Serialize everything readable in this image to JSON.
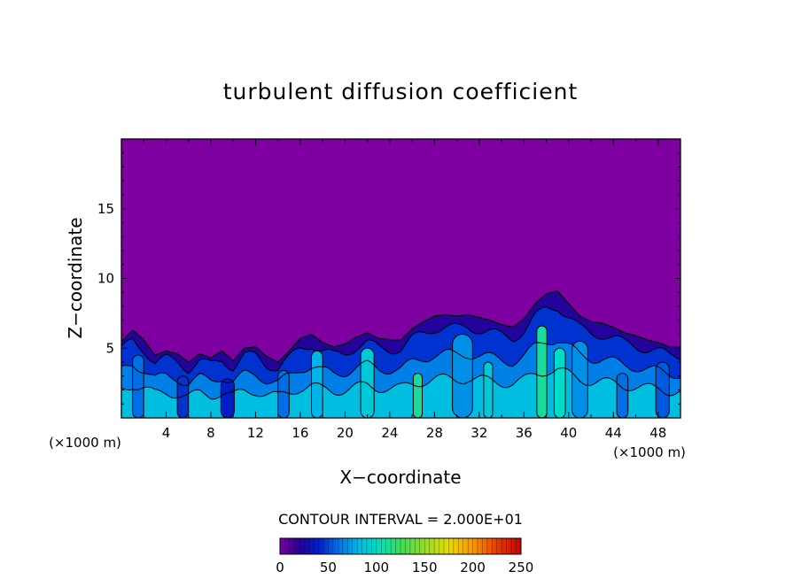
{
  "chart_data": {
    "type": "heatmap",
    "title": "turbulent diffusion coefficient",
    "xlabel": "X−coordinate",
    "ylabel": "Z−coordinate",
    "x_unit_left": "(×1000 m)",
    "x_unit_right": "(×1000 m)",
    "xlim": [
      0,
      50
    ],
    "ylim": [
      0,
      20
    ],
    "x_ticks": [
      4,
      8,
      12,
      16,
      20,
      24,
      28,
      32,
      36,
      40,
      44,
      48
    ],
    "x_tick_labels": [
      "4",
      "8",
      "12",
      "16",
      "20",
      "24",
      "28",
      "32",
      "36",
      "40",
      "44",
      "48"
    ],
    "y_ticks": [
      5,
      10,
      15
    ],
    "y_tick_labels": [
      "5",
      "10",
      "15"
    ],
    "contour_interval_text": "CONTOUR INTERVAL = 2.000E+01",
    "contour_interval": 20,
    "colorbar": {
      "min": 0,
      "max": 250,
      "tick_values": [
        0,
        50,
        100,
        150,
        200,
        250
      ],
      "tick_labels": [
        "0",
        "50",
        "100",
        "150",
        "200",
        "250"
      ]
    },
    "background_value": 0,
    "turbulent_layer_top": [
      [
        0,
        5.5
      ],
      [
        1,
        6.3
      ],
      [
        2,
        5.6
      ],
      [
        3,
        4.5
      ],
      [
        4,
        4.8
      ],
      [
        5,
        4.6
      ],
      [
        6,
        4.0
      ],
      [
        7,
        4.6
      ],
      [
        8,
        4.3
      ],
      [
        9,
        4.8
      ],
      [
        10,
        4.1
      ],
      [
        11,
        5.0
      ],
      [
        12,
        5.1
      ],
      [
        13,
        4.4
      ],
      [
        14,
        4.0
      ],
      [
        15,
        4.8
      ],
      [
        16,
        5.7
      ],
      [
        17,
        6.0
      ],
      [
        18,
        5.4
      ],
      [
        19,
        5.1
      ],
      [
        20,
        5.3
      ],
      [
        21,
        5.8
      ],
      [
        22,
        6.1
      ],
      [
        23,
        5.7
      ],
      [
        24,
        5.6
      ],
      [
        25,
        5.6
      ],
      [
        26,
        6.4
      ],
      [
        27,
        6.9
      ],
      [
        28,
        7.3
      ],
      [
        29,
        7.4
      ],
      [
        30,
        7.3
      ],
      [
        31,
        7.4
      ],
      [
        32,
        7.2
      ],
      [
        33,
        7.0
      ],
      [
        34,
        6.7
      ],
      [
        35,
        6.5
      ],
      [
        36,
        7.1
      ],
      [
        37,
        8.2
      ],
      [
        38,
        8.9
      ],
      [
        39,
        9.1
      ],
      [
        40,
        8.2
      ],
      [
        41,
        7.3
      ],
      [
        42,
        6.9
      ],
      [
        43,
        6.8
      ],
      [
        44,
        6.5
      ],
      [
        45,
        6.1
      ],
      [
        46,
        5.9
      ],
      [
        47,
        5.6
      ],
      [
        48,
        5.4
      ],
      [
        49,
        5.1
      ],
      [
        50,
        5.1
      ]
    ],
    "plumes": [
      {
        "x": 1.5,
        "z_top": 4.5,
        "width": 1.0,
        "peak": 60
      },
      {
        "x": 5.5,
        "z_top": 3.0,
        "width": 1.0,
        "peak": 45
      },
      {
        "x": 9.5,
        "z_top": 2.8,
        "width": 1.2,
        "peak": 40
      },
      {
        "x": 14.5,
        "z_top": 3.4,
        "width": 1.0,
        "peak": 60
      },
      {
        "x": 17.5,
        "z_top": 4.8,
        "width": 1.0,
        "peak": 80
      },
      {
        "x": 22.0,
        "z_top": 5.0,
        "width": 1.2,
        "peak": 90
      },
      {
        "x": 26.5,
        "z_top": 3.2,
        "width": 0.8,
        "peak": 110
      },
      {
        "x": 30.5,
        "z_top": 6.0,
        "width": 1.8,
        "peak": 70
      },
      {
        "x": 32.8,
        "z_top": 4.0,
        "width": 0.8,
        "peak": 90
      },
      {
        "x": 37.6,
        "z_top": 6.6,
        "width": 0.9,
        "peak": 110
      },
      {
        "x": 39.2,
        "z_top": 5.0,
        "width": 1.0,
        "peak": 100
      },
      {
        "x": 41.0,
        "z_top": 5.5,
        "width": 1.4,
        "peak": 70
      },
      {
        "x": 44.8,
        "z_top": 3.2,
        "width": 1.0,
        "peak": 60
      },
      {
        "x": 48.4,
        "z_top": 4.0,
        "width": 1.2,
        "peak": 55
      }
    ],
    "grid": false,
    "legend": "colorbar-bottom"
  }
}
